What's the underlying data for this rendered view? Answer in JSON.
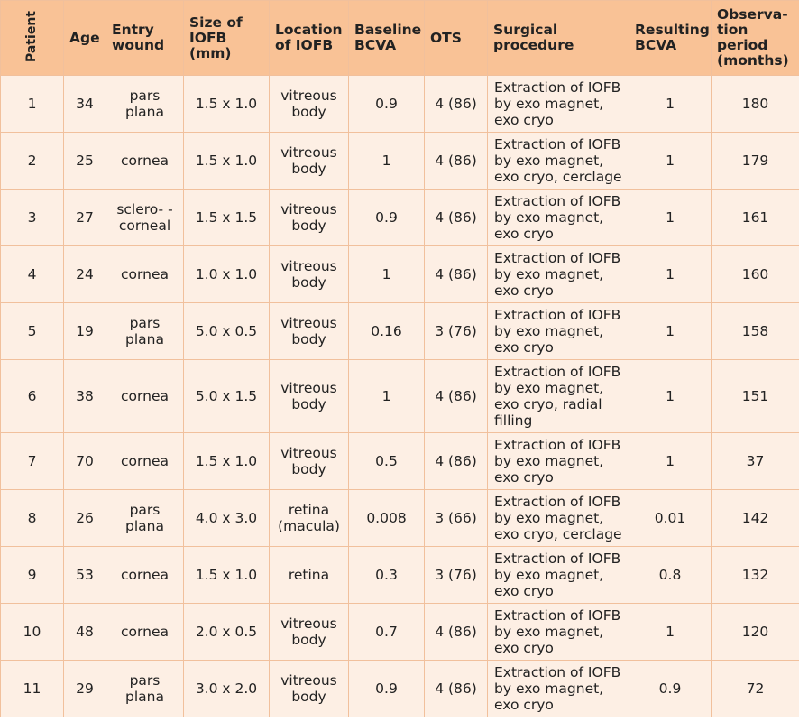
{
  "header": {
    "patient": "Patient",
    "age": "Age",
    "entry_wound": "Entry wound",
    "size": "Size of IOFB (mm)",
    "location": "Location of IOFB",
    "baseline": "Baseline BCVA",
    "ots": "OTS",
    "procedure": "Surgical procedure",
    "resulting": "Resulting BCVA",
    "observation": "Observa-tion period (months)"
  },
  "rows": [
    {
      "patient": "1",
      "age": "34",
      "entry": "pars plana",
      "size": "1.5 x 1.0",
      "location": "vitreous body",
      "baseline": "0.9",
      "ots": "4 (86)",
      "procedure": "Extraction of IOFB by exo magnet, exo cryo",
      "resulting": "1",
      "observation": "180"
    },
    {
      "patient": "2",
      "age": "25",
      "entry": "cornea",
      "size": "1.5 x 1.0",
      "location": "vitreous body",
      "baseline": "1",
      "ots": "4 (86)",
      "procedure": "Extraction of IOFB by exo magnet, exo cryo, cerclage",
      "resulting": "1",
      "observation": "179"
    },
    {
      "patient": "3",
      "age": "27",
      "entry": "sclero- -corneal",
      "size": "1.5 x 1.5",
      "location": "vitreous body",
      "baseline": "0.9",
      "ots": "4 (86)",
      "procedure": "Extraction of IOFB by exo magnet, exo cryo",
      "resulting": "1",
      "observation": "161"
    },
    {
      "patient": "4",
      "age": "24",
      "entry": "cornea",
      "size": "1.0 x 1.0",
      "location": "vitreous body",
      "baseline": "1",
      "ots": "4 (86)",
      "procedure": "Extraction of IOFB by exo magnet, exo cryo",
      "resulting": "1",
      "observation": "160"
    },
    {
      "patient": "5",
      "age": "19",
      "entry": "pars plana",
      "size": "5.0 x 0.5",
      "location": "vitreous body",
      "baseline": "0.16",
      "ots": "3 (76)",
      "procedure": "Extraction of IOFB by exo magnet, exo cryo",
      "resulting": "1",
      "observation": "158"
    },
    {
      "patient": "6",
      "age": "38",
      "entry": "cornea",
      "size": "5.0 x 1.5",
      "location": "vitreous body",
      "baseline": "1",
      "ots": "4 (86)",
      "procedure": "Extraction of IOFB by exo magnet, exo cryo, radial filling",
      "resulting": "1",
      "observation": "151"
    },
    {
      "patient": "7",
      "age": "70",
      "entry": "cornea",
      "size": "1.5 x 1.0",
      "location": "vitreous body",
      "baseline": "0.5",
      "ots": "4 (86)",
      "procedure": "Extraction of IOFB by exo magnet, exo cryo",
      "resulting": "1",
      "observation": "37"
    },
    {
      "patient": "8",
      "age": "26",
      "entry": "pars plana",
      "size": "4.0 x 3.0",
      "location": "retina (macula)",
      "baseline": "0.008",
      "ots": "3 (66)",
      "procedure": "Extraction of IOFB by exo magnet, exo cryo, cerclage",
      "resulting": "0.01",
      "observation": "142"
    },
    {
      "patient": "9",
      "age": "53",
      "entry": "cornea",
      "size": "1.5 x 1.0",
      "location": "retina",
      "baseline": "0.3",
      "ots": "3 (76)",
      "procedure": "Extraction of IOFB by exo magnet, exo cryo",
      "resulting": "0.8",
      "observation": "132"
    },
    {
      "patient": "10",
      "age": "48",
      "entry": "cornea",
      "size": "2.0 x 0.5",
      "location": "vitreous body",
      "baseline": "0.7",
      "ots": "4 (86)",
      "procedure": "Extraction of IOFB by exo magnet, exo cryo",
      "resulting": "1",
      "observation": "120"
    },
    {
      "patient": "11",
      "age": "29",
      "entry": "pars plana",
      "size": "3.0 x 2.0",
      "location": "vitreous body",
      "baseline": "0.9",
      "ots": "4 (86)",
      "procedure": "Extraction of IOFB by exo magnet, exo cryo",
      "resulting": "0.9",
      "observation": "72"
    }
  ],
  "colors": {
    "header_bg": "#f9c296",
    "row_bg": "#fdefe4",
    "border": "#f1c09c"
  }
}
